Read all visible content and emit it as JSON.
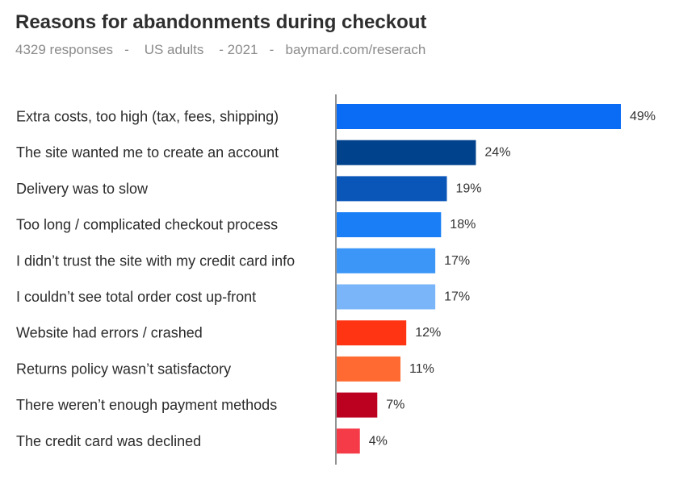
{
  "chart_data": {
    "type": "bar",
    "orientation": "horizontal",
    "title": "Reasons for abandonments during checkout",
    "subtitle": "4329 responses   -    US adults    - 2021   -   baymard.com/reserach",
    "xlabel": "",
    "ylabel": "",
    "xlim": [
      0,
      55
    ],
    "grid": false,
    "legend": "none",
    "unit_suffix": "%",
    "categories": [
      "Extra costs, too high (tax, fees, shipping)",
      "The site wanted me to create an account",
      "Delivery was to slow",
      "Too long / complicated checkout process",
      "I didn’t trust the site with my credit card info",
      "I couldn’t see total order cost up-front",
      "Website had errors / crashed",
      "Returns policy wasn’t satisfactory",
      "There weren’t enough payment methods",
      "The credit card was declined"
    ],
    "values": [
      49,
      24,
      19,
      18,
      17,
      17,
      12,
      11,
      7,
      4
    ],
    "value_labels": [
      "49%",
      "24%",
      "19%",
      "18%",
      "17%",
      "17%",
      "12%",
      "11%",
      "7%",
      "4%"
    ],
    "bar_colors": [
      "#0a6cf5",
      "#00428b",
      "#0a56b8",
      "#1a7ff7",
      "#3b96f7",
      "#79b5f8",
      "#ff3412",
      "#ff6a32",
      "#bb0020",
      "#f53a48"
    ],
    "axis_color": "#6f6f6f"
  }
}
